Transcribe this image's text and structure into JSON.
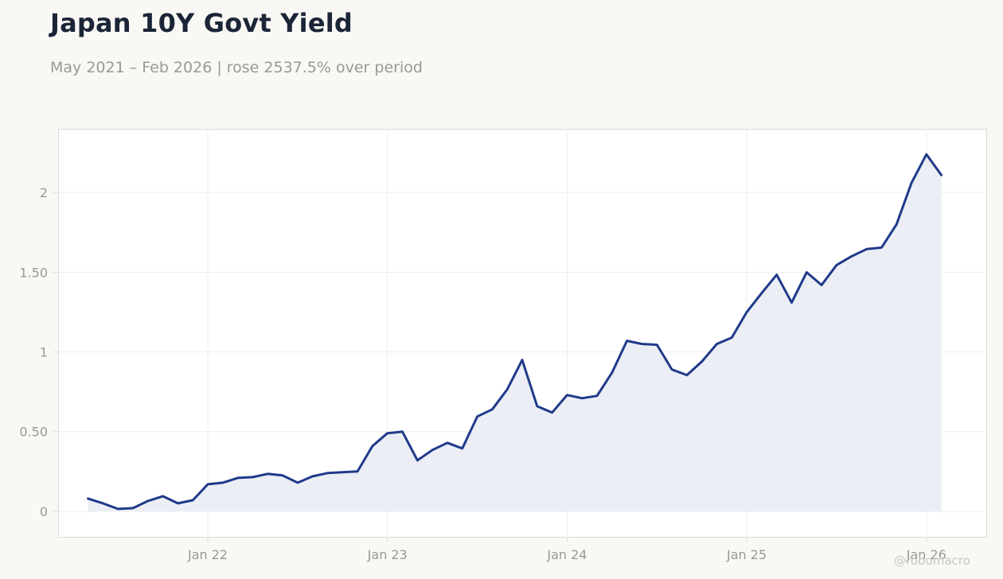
{
  "header": {
    "title": "Japan 10Y Govt Yield",
    "subtitle": "May 2021 – Feb 2026 | rose 2537.5% over period"
  },
  "watermark": "@robomacro",
  "colors": {
    "line": "#1f3a8a",
    "area": "#eceef5",
    "grid": "#eeeeee",
    "frame": "#dddbd6",
    "tick_text": "#9a9893"
  },
  "chart_data": {
    "type": "area",
    "title": "Japan 10Y Govt Yield",
    "subtitle": "May 2021 – Feb 2026 | rose 2537.5% over period",
    "xlabel": "",
    "ylabel": "",
    "grid": true,
    "ylim": [
      -0.16,
      2.4
    ],
    "xlim": [
      "2021-03-01",
      "2026-05-01"
    ],
    "x_ticks": [
      {
        "date": "2022-01-01",
        "label": "Jan 22"
      },
      {
        "date": "2023-01-01",
        "label": "Jan 23"
      },
      {
        "date": "2024-01-01",
        "label": "Jan 24"
      },
      {
        "date": "2025-01-01",
        "label": "Jan 25"
      },
      {
        "date": "2026-01-01",
        "label": "Jan 26"
      }
    ],
    "y_ticks": [
      {
        "value": 0,
        "label": "0"
      },
      {
        "value": 0.5,
        "label": "0.50"
      },
      {
        "value": 1,
        "label": "1"
      },
      {
        "value": 1.5,
        "label": "1.50"
      },
      {
        "value": 2,
        "label": "2"
      }
    ],
    "series": [
      {
        "x": [
          "2021-05-01",
          "2021-06-01",
          "2021-07-01",
          "2021-08-01",
          "2021-09-01",
          "2021-10-01",
          "2021-11-01",
          "2021-12-01",
          "2022-01-01",
          "2022-02-01",
          "2022-03-01",
          "2022-04-01",
          "2022-05-01",
          "2022-06-01",
          "2022-07-01",
          "2022-08-01",
          "2022-09-01",
          "2022-10-01",
          "2022-11-01",
          "2022-12-01",
          "2023-01-01",
          "2023-02-01",
          "2023-03-01",
          "2023-04-01",
          "2023-05-01",
          "2023-06-01",
          "2023-07-01",
          "2023-08-01",
          "2023-09-01",
          "2023-10-01",
          "2023-11-01",
          "2023-12-01",
          "2024-01-01",
          "2024-02-01",
          "2024-03-01",
          "2024-04-01",
          "2024-05-01",
          "2024-06-01",
          "2024-07-01",
          "2024-08-01",
          "2024-09-01",
          "2024-10-01",
          "2024-11-01",
          "2024-12-01",
          "2025-01-01",
          "2025-02-01",
          "2025-03-01",
          "2025-04-01",
          "2025-05-01",
          "2025-06-01",
          "2025-07-01",
          "2025-08-01",
          "2025-09-01",
          "2025-10-01",
          "2025-11-01",
          "2025-12-01",
          "2026-01-01",
          "2026-02-01"
        ],
        "values": [
          0.08,
          0.05,
          0.015,
          0.02,
          0.065,
          0.095,
          0.05,
          0.07,
          0.17,
          0.18,
          0.21,
          0.215,
          0.235,
          0.225,
          0.18,
          0.22,
          0.24,
          0.245,
          0.25,
          0.41,
          0.49,
          0.5,
          0.32,
          0.385,
          0.43,
          0.395,
          0.595,
          0.64,
          0.765,
          0.95,
          0.66,
          0.62,
          0.73,
          0.71,
          0.725,
          0.87,
          1.07,
          1.05,
          1.045,
          0.89,
          0.855,
          0.94,
          1.05,
          1.09,
          1.25,
          1.37,
          1.485,
          1.31,
          1.5,
          1.42,
          1.545,
          1.6,
          1.645,
          1.655,
          1.8,
          2.06,
          2.24,
          2.11
        ]
      }
    ]
  }
}
